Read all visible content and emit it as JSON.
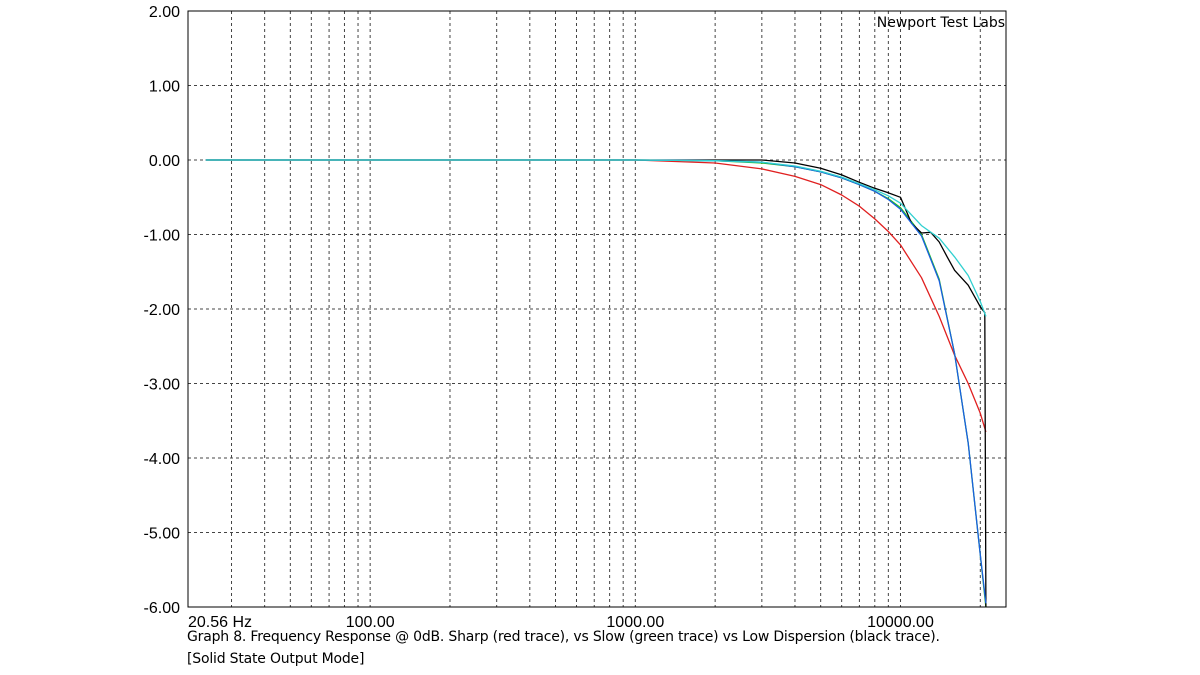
{
  "chart_data": {
    "type": "line",
    "watermark": "Newport Test Labs",
    "x_scale": "log",
    "xlim": [
      20.56,
      25000
    ],
    "ylim": [
      -6,
      2
    ],
    "x_tick_labels": [
      {
        "value": 20.56,
        "label": "20.56 Hz"
      },
      {
        "value": 100,
        "label": "100.00"
      },
      {
        "value": 1000,
        "label": "1000.00"
      },
      {
        "value": 10000,
        "label": "10000.00"
      }
    ],
    "y_ticks": [
      2,
      1,
      0,
      -1,
      -2,
      -3,
      -4,
      -5,
      -6
    ],
    "y_tick_labels": [
      "2.00",
      "1.00",
      "0.00",
      "-1.00",
      "-2.00",
      "-3.00",
      "-4.00",
      "-5.00",
      "-6.00"
    ],
    "grid": true,
    "caption_line1": "Graph 8. Frequency Response @ 0dB. Sharp (red trace), vs Slow (green trace) vs Low Dispersion (black trace).",
    "caption_line2": "[Solid State Output Mode]",
    "series": [
      {
        "key": "sharp",
        "color": "#e02020",
        "x": [
          24,
          1000,
          2000,
          3000,
          4000,
          5000,
          6000,
          7000,
          8000,
          9000,
          10000,
          12000,
          14000,
          16000,
          18000,
          20000,
          21000
        ],
        "y": [
          0,
          0,
          -0.04,
          -0.12,
          -0.22,
          -0.33,
          -0.47,
          -0.62,
          -0.79,
          -0.96,
          -1.14,
          -1.58,
          -2.1,
          -2.62,
          -3.0,
          -3.4,
          -3.65
        ]
      },
      {
        "key": "slow",
        "color": "#20c020",
        "x": [
          24,
          1000,
          2000,
          3000,
          4000,
          5000,
          6000,
          7000,
          8000,
          9000,
          10000,
          12000,
          14000,
          16000,
          18000,
          20000,
          21000
        ],
        "y": [
          0,
          0,
          -0.01,
          -0.04,
          -0.09,
          -0.16,
          -0.24,
          -0.33,
          -0.42,
          -0.52,
          -0.64,
          -1.0,
          -1.6,
          -2.6,
          -3.8,
          -5.3,
          -6.0
        ]
      },
      {
        "key": "low-dispersion",
        "color": "#000000",
        "x": [
          24,
          1000,
          2000,
          3000,
          4000,
          5000,
          6000,
          7000,
          8000,
          9000,
          10000,
          11000,
          12000,
          13000,
          14000,
          15000,
          16000,
          18000,
          20000,
          20800,
          21000
        ],
        "y": [
          0,
          0,
          0,
          0,
          -0.04,
          -0.11,
          -0.2,
          -0.3,
          -0.38,
          -0.44,
          -0.5,
          -0.85,
          -0.98,
          -0.97,
          -1.1,
          -1.3,
          -1.48,
          -1.68,
          -1.97,
          -2.05,
          -6.0
        ]
      },
      {
        "key": "blue",
        "color": "#1a5fe0",
        "x": [
          24,
          1000,
          2000,
          3000,
          4000,
          5000,
          6000,
          7000,
          8000,
          9000,
          10000,
          12000,
          14000,
          16000,
          18000,
          20000,
          21000
        ],
        "y": [
          0,
          0,
          -0.01,
          -0.03,
          -0.09,
          -0.16,
          -0.24,
          -0.33,
          -0.42,
          -0.53,
          -0.66,
          -1.02,
          -1.62,
          -2.6,
          -3.8,
          -5.3,
          -5.95
        ]
      },
      {
        "key": "cyan",
        "color": "#30d0d0",
        "x": [
          24,
          1000,
          2000,
          3000,
          4000,
          5000,
          6000,
          7000,
          8000,
          9000,
          10000,
          12000,
          14000,
          16000,
          18000,
          20000,
          21000
        ],
        "y": [
          0,
          0,
          -0.01,
          -0.03,
          -0.08,
          -0.15,
          -0.23,
          -0.32,
          -0.4,
          -0.48,
          -0.58,
          -0.88,
          -1.05,
          -1.3,
          -1.55,
          -1.9,
          -2.1
        ]
      }
    ]
  }
}
